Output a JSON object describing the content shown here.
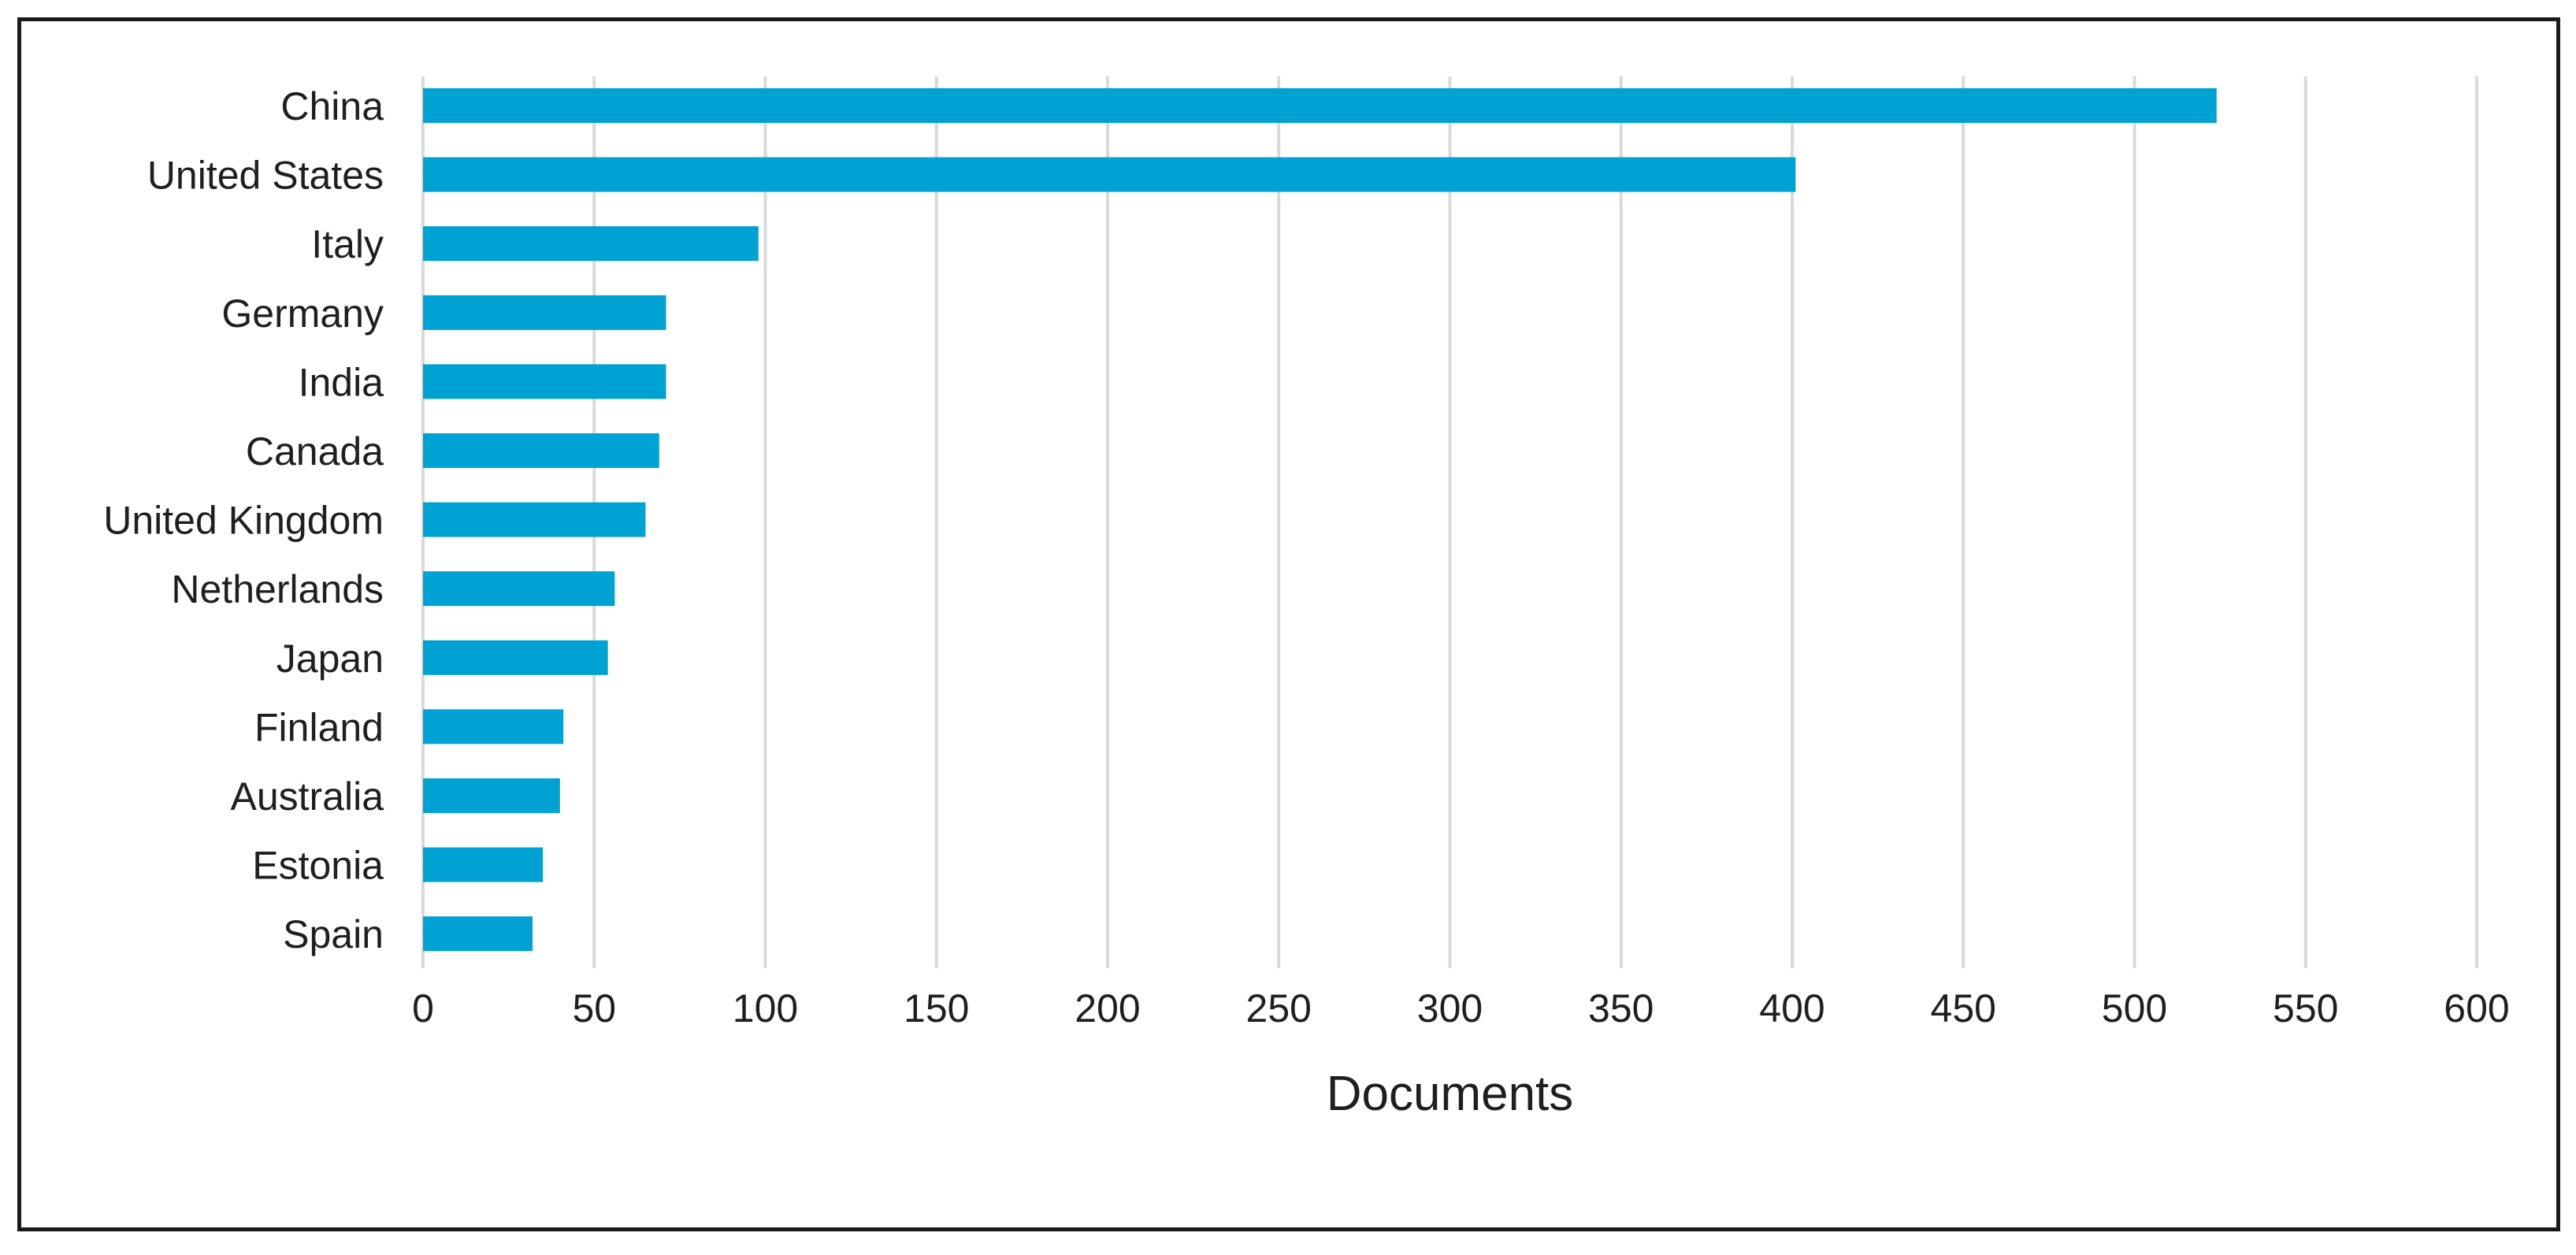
{
  "chart_data": {
    "type": "bar",
    "orientation": "horizontal",
    "title": "",
    "xlabel": "Documents",
    "ylabel": "",
    "xlim": [
      0,
      600
    ],
    "xticks": [
      0,
      50,
      100,
      150,
      200,
      250,
      300,
      350,
      400,
      450,
      500,
      550,
      600
    ],
    "grid": true,
    "bar_color": "#00A2D3",
    "categories": [
      "China",
      "United States",
      "Italy",
      "Germany",
      "India",
      "Canada",
      "United Kingdom",
      "Netherlands",
      "Japan",
      "Finland",
      "Australia",
      "Estonia",
      "Spain"
    ],
    "values": [
      524,
      401,
      98,
      71,
      71,
      69,
      65,
      56,
      54,
      41,
      40,
      35,
      32
    ]
  }
}
